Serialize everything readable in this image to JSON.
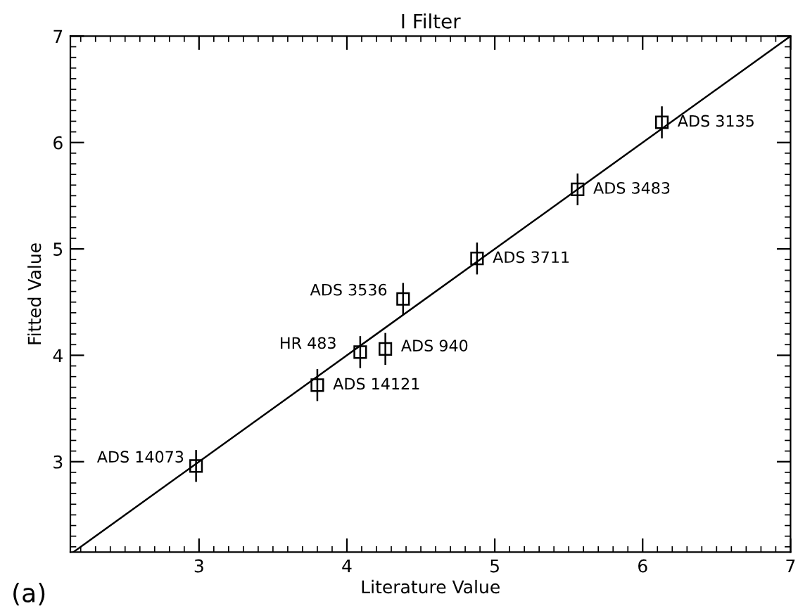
{
  "chart_data": {
    "type": "scatter",
    "title": "I Filter",
    "xlabel": "Literature Value",
    "ylabel": "Fitted Value",
    "xlim": [
      2.13,
      7
    ],
    "ylim": [
      2.15,
      7
    ],
    "xticks": [
      3,
      4,
      5,
      6,
      7
    ],
    "yticks": [
      3,
      4,
      5,
      6,
      7
    ],
    "grid": false,
    "series": [
      {
        "marker": "square",
        "color": "#000000",
        "x": [
          2.98,
          3.8,
          4.09,
          4.26,
          4.38,
          4.88,
          5.56,
          6.13
        ],
        "values": [
          2.96,
          3.72,
          4.03,
          4.06,
          4.53,
          4.91,
          5.56,
          6.19
        ],
        "errors": [
          0.15,
          0.15,
          0.15,
          0.15,
          0.15,
          0.15,
          0.15,
          0.15
        ],
        "value_labels": [
          "ADS 14073",
          "ADS 14121",
          "HR 483",
          "ADS 940",
          "ADS 3536",
          "ADS 3711",
          "ADS 3483",
          "ADS 3135"
        ]
      },
      {
        "type": "line",
        "color": "#000000",
        "x": [
          2.15,
          7
        ],
        "values": [
          2.15,
          7
        ]
      }
    ],
    "annotations": [
      "(a)"
    ]
  }
}
